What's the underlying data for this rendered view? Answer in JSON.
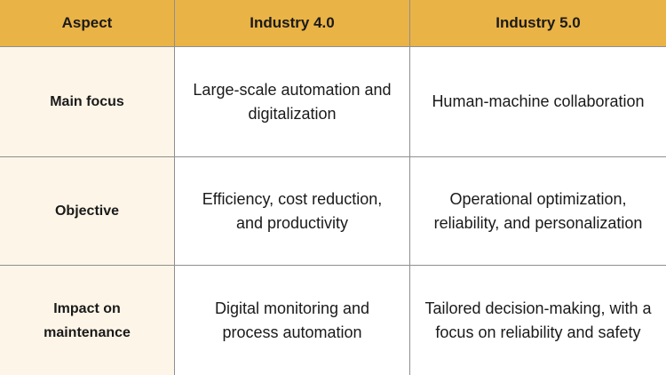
{
  "table": {
    "headers": [
      "Aspect",
      "Industry 4.0",
      "Industry 5.0"
    ],
    "rows": [
      {
        "aspect": "Main focus",
        "industry_4": "Large-scale automation and digitalization",
        "industry_5": "Human-machine collaboration"
      },
      {
        "aspect": "Objective",
        "industry_4": "Efficiency, cost reduction, and productivity",
        "industry_5": "Operational optimization, reliability, and personalization"
      },
      {
        "aspect": "Impact on maintenance",
        "industry_4": "Digital monitoring and process automation",
        "industry_5": "Tailored decision-making, with a focus on reliability and safety"
      }
    ]
  },
  "colors": {
    "header_background": "#eab345",
    "aspect_background": "#fdf6e8",
    "grid_line": "#8f8f8f"
  }
}
